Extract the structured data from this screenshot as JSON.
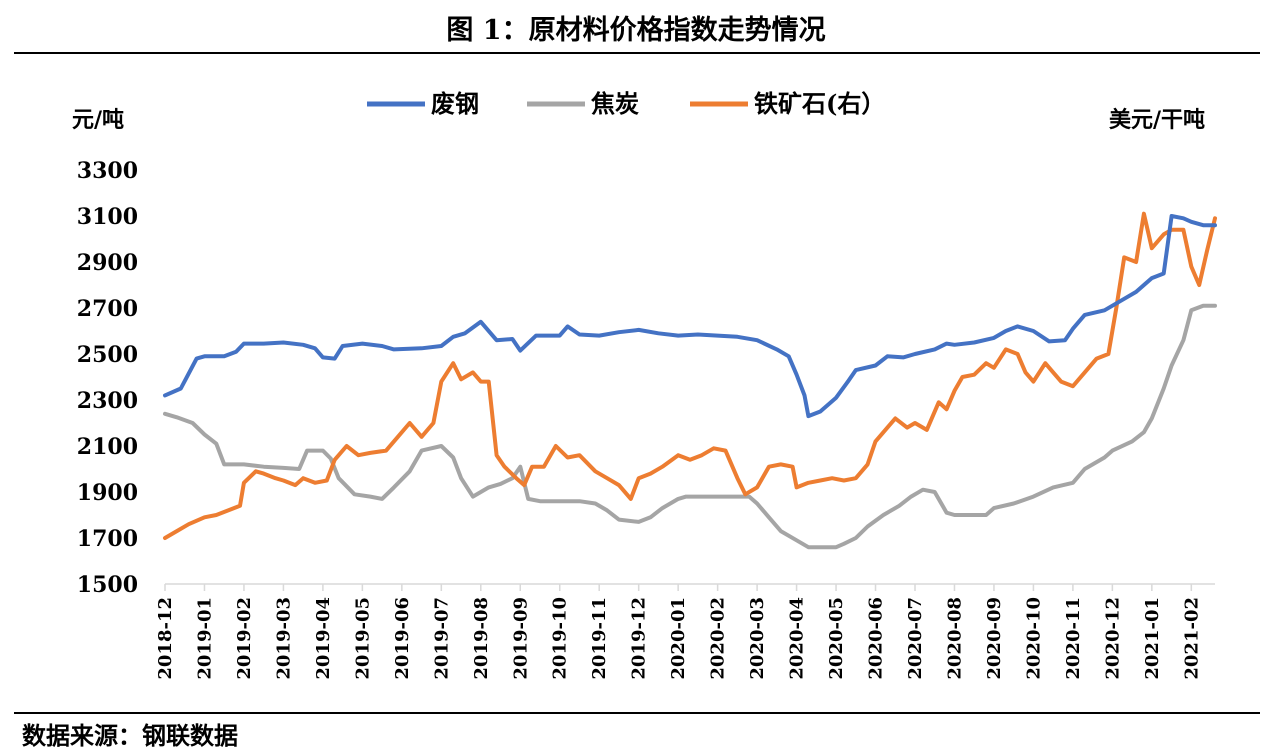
{
  "title": "图 1：原材料价格指数走势情况",
  "source": "数据来源：钢联数据",
  "colors": {
    "scrap": "#4472c4",
    "coke": "#a5a5a5",
    "ore": "#ed7d31"
  },
  "chart_data": {
    "type": "line",
    "y_left_label": "元/吨",
    "y_right_label": "美元/干吨",
    "y_ticks": [
      1500,
      1700,
      1900,
      2100,
      2300,
      2500,
      2700,
      2900,
      3100,
      3300
    ],
    "ylim": [
      1500,
      3300
    ],
    "x_labels": [
      "2018-12",
      "2019-01",
      "2019-02",
      "2019-03",
      "2019-04",
      "2019-05",
      "2019-06",
      "2019-07",
      "2019-08",
      "2019-09",
      "2019-10",
      "2019-11",
      "2019-12",
      "2020-01",
      "2020-02",
      "2020-03",
      "2020-04",
      "2020-05",
      "2020-06",
      "2020-07",
      "2020-08",
      "2020-09",
      "2020-10",
      "2020-11",
      "2020-12",
      "2021-01",
      "2021-02"
    ],
    "xlim": [
      0,
      26.6
    ],
    "legend": "top",
    "grid": false,
    "series": [
      {
        "name": "废钢",
        "color": "#4472c4",
        "points": [
          [
            0,
            2320
          ],
          [
            0.4,
            2350
          ],
          [
            0.8,
            2480
          ],
          [
            1,
            2490
          ],
          [
            1.5,
            2490
          ],
          [
            1.8,
            2510
          ],
          [
            2,
            2545
          ],
          [
            2.5,
            2545
          ],
          [
            3,
            2550
          ],
          [
            3.5,
            2540
          ],
          [
            3.8,
            2525
          ],
          [
            4,
            2485
          ],
          [
            4.3,
            2480
          ],
          [
            4.5,
            2535
          ],
          [
            5,
            2545
          ],
          [
            5.5,
            2535
          ],
          [
            5.8,
            2520
          ],
          [
            6.5,
            2525
          ],
          [
            7,
            2535
          ],
          [
            7.3,
            2575
          ],
          [
            7.6,
            2590
          ],
          [
            8,
            2640
          ],
          [
            8.4,
            2560
          ],
          [
            8.8,
            2565
          ],
          [
            9,
            2515
          ],
          [
            9.4,
            2580
          ],
          [
            9.8,
            2580
          ],
          [
            10,
            2580
          ],
          [
            10.2,
            2620
          ],
          [
            10.5,
            2585
          ],
          [
            11,
            2580
          ],
          [
            11.5,
            2595
          ],
          [
            12,
            2605
          ],
          [
            12.5,
            2590
          ],
          [
            13,
            2580
          ],
          [
            13.5,
            2585
          ],
          [
            14,
            2580
          ],
          [
            14.5,
            2575
          ],
          [
            15,
            2560
          ],
          [
            15.5,
            2520
          ],
          [
            15.8,
            2490
          ],
          [
            16,
            2410
          ],
          [
            16.2,
            2320
          ],
          [
            16.3,
            2230
          ],
          [
            16.6,
            2250
          ],
          [
            17,
            2310
          ],
          [
            17.3,
            2380
          ],
          [
            17.5,
            2430
          ],
          [
            18,
            2450
          ],
          [
            18.3,
            2490
          ],
          [
            18.7,
            2485
          ],
          [
            19,
            2500
          ],
          [
            19.5,
            2520
          ],
          [
            19.8,
            2545
          ],
          [
            20,
            2540
          ],
          [
            20.5,
            2550
          ],
          [
            21,
            2570
          ],
          [
            21.3,
            2600
          ],
          [
            21.6,
            2620
          ],
          [
            22,
            2600
          ],
          [
            22.4,
            2555
          ],
          [
            22.8,
            2560
          ],
          [
            23,
            2610
          ],
          [
            23.3,
            2670
          ],
          [
            23.8,
            2690
          ],
          [
            24,
            2710
          ],
          [
            24.3,
            2740
          ],
          [
            24.6,
            2770
          ],
          [
            25,
            2830
          ],
          [
            25.3,
            2850
          ],
          [
            25.5,
            3100
          ],
          [
            25.8,
            3090
          ],
          [
            26,
            3075
          ],
          [
            26.3,
            3060
          ],
          [
            26.6,
            3060
          ]
        ]
      },
      {
        "name": "焦炭",
        "color": "#a5a5a5",
        "points": [
          [
            0,
            2240
          ],
          [
            0.3,
            2225
          ],
          [
            0.7,
            2200
          ],
          [
            1,
            2150
          ],
          [
            1.3,
            2110
          ],
          [
            1.5,
            2020
          ],
          [
            2,
            2020
          ],
          [
            2.5,
            2010
          ],
          [
            3,
            2005
          ],
          [
            3.4,
            2000
          ],
          [
            3.6,
            2080
          ],
          [
            4,
            2080
          ],
          [
            4.2,
            2045
          ],
          [
            4.4,
            1960
          ],
          [
            4.8,
            1890
          ],
          [
            5.2,
            1880
          ],
          [
            5.5,
            1870
          ],
          [
            5.8,
            1920
          ],
          [
            6.2,
            1990
          ],
          [
            6.5,
            2080
          ],
          [
            7,
            2100
          ],
          [
            7.3,
            2050
          ],
          [
            7.5,
            1960
          ],
          [
            7.8,
            1880
          ],
          [
            8.2,
            1920
          ],
          [
            8.5,
            1935
          ],
          [
            8.8,
            1960
          ],
          [
            9,
            2010
          ],
          [
            9.2,
            1870
          ],
          [
            9.5,
            1860
          ],
          [
            10,
            1860
          ],
          [
            10.5,
            1860
          ],
          [
            10.9,
            1850
          ],
          [
            11.2,
            1820
          ],
          [
            11.5,
            1780
          ],
          [
            12,
            1770
          ],
          [
            12.3,
            1790
          ],
          [
            12.6,
            1830
          ],
          [
            13,
            1870
          ],
          [
            13.2,
            1880
          ],
          [
            13.8,
            1880
          ],
          [
            14.3,
            1880
          ],
          [
            14.8,
            1880
          ],
          [
            15,
            1850
          ],
          [
            15.3,
            1790
          ],
          [
            15.6,
            1730
          ],
          [
            16,
            1690
          ],
          [
            16.3,
            1660
          ],
          [
            16.7,
            1660
          ],
          [
            17,
            1660
          ],
          [
            17.2,
            1675
          ],
          [
            17.5,
            1700
          ],
          [
            17.8,
            1750
          ],
          [
            18.2,
            1800
          ],
          [
            18.6,
            1840
          ],
          [
            18.9,
            1880
          ],
          [
            19.2,
            1910
          ],
          [
            19.5,
            1900
          ],
          [
            19.8,
            1810
          ],
          [
            20,
            1800
          ],
          [
            20.5,
            1800
          ],
          [
            20.8,
            1800
          ],
          [
            21,
            1830
          ],
          [
            21.5,
            1850
          ],
          [
            22,
            1880
          ],
          [
            22.5,
            1920
          ],
          [
            23,
            1940
          ],
          [
            23.3,
            2000
          ],
          [
            23.8,
            2050
          ],
          [
            24,
            2080
          ],
          [
            24.5,
            2120
          ],
          [
            24.8,
            2160
          ],
          [
            25,
            2220
          ],
          [
            25.3,
            2350
          ],
          [
            25.5,
            2450
          ],
          [
            25.8,
            2560
          ],
          [
            26,
            2690
          ],
          [
            26.3,
            2710
          ],
          [
            26.6,
            2710
          ]
        ]
      },
      {
        "name": "铁矿石(右）",
        "color": "#ed7d31",
        "points": [
          [
            0,
            1700
          ],
          [
            0.3,
            1730
          ],
          [
            0.6,
            1760
          ],
          [
            1,
            1790
          ],
          [
            1.3,
            1800
          ],
          [
            1.6,
            1820
          ],
          [
            1.9,
            1840
          ],
          [
            2,
            1940
          ],
          [
            2.3,
            1990
          ],
          [
            2.5,
            1980
          ],
          [
            2.8,
            1960
          ],
          [
            3,
            1950
          ],
          [
            3.3,
            1930
          ],
          [
            3.5,
            1960
          ],
          [
            3.8,
            1940
          ],
          [
            4.1,
            1950
          ],
          [
            4.3,
            2040
          ],
          [
            4.6,
            2100
          ],
          [
            4.9,
            2060
          ],
          [
            5.2,
            2070
          ],
          [
            5.6,
            2080
          ],
          [
            5.9,
            2140
          ],
          [
            6.2,
            2200
          ],
          [
            6.5,
            2140
          ],
          [
            6.8,
            2200
          ],
          [
            7,
            2380
          ],
          [
            7.3,
            2460
          ],
          [
            7.5,
            2390
          ],
          [
            7.8,
            2420
          ],
          [
            8,
            2380
          ],
          [
            8.2,
            2380
          ],
          [
            8.4,
            2060
          ],
          [
            8.6,
            2010
          ],
          [
            8.9,
            1960
          ],
          [
            9.1,
            1930
          ],
          [
            9.3,
            2010
          ],
          [
            9.6,
            2010
          ],
          [
            9.9,
            2100
          ],
          [
            10.2,
            2050
          ],
          [
            10.5,
            2060
          ],
          [
            10.9,
            1990
          ],
          [
            11.2,
            1960
          ],
          [
            11.5,
            1930
          ],
          [
            11.8,
            1870
          ],
          [
            12,
            1960
          ],
          [
            12.3,
            1980
          ],
          [
            12.6,
            2010
          ],
          [
            13,
            2060
          ],
          [
            13.3,
            2040
          ],
          [
            13.6,
            2060
          ],
          [
            13.9,
            2090
          ],
          [
            14.2,
            2080
          ],
          [
            14.5,
            1960
          ],
          [
            14.7,
            1890
          ],
          [
            15,
            1920
          ],
          [
            15.3,
            2010
          ],
          [
            15.6,
            2020
          ],
          [
            15.9,
            2010
          ],
          [
            16,
            1920
          ],
          [
            16.3,
            1940
          ],
          [
            16.6,
            1950
          ],
          [
            16.9,
            1960
          ],
          [
            17.2,
            1950
          ],
          [
            17.5,
            1960
          ],
          [
            17.8,
            2020
          ],
          [
            18,
            2120
          ],
          [
            18.3,
            2180
          ],
          [
            18.5,
            2220
          ],
          [
            18.8,
            2180
          ],
          [
            19,
            2200
          ],
          [
            19.3,
            2170
          ],
          [
            19.6,
            2290
          ],
          [
            19.8,
            2260
          ],
          [
            20,
            2340
          ],
          [
            20.2,
            2400
          ],
          [
            20.5,
            2410
          ],
          [
            20.8,
            2460
          ],
          [
            21,
            2440
          ],
          [
            21.3,
            2520
          ],
          [
            21.6,
            2500
          ],
          [
            21.8,
            2420
          ],
          [
            22,
            2380
          ],
          [
            22.3,
            2460
          ],
          [
            22.5,
            2420
          ],
          [
            22.7,
            2380
          ],
          [
            23,
            2360
          ],
          [
            23.3,
            2420
          ],
          [
            23.6,
            2480
          ],
          [
            23.9,
            2500
          ],
          [
            24.1,
            2700
          ],
          [
            24.3,
            2920
          ],
          [
            24.6,
            2900
          ],
          [
            24.8,
            3110
          ],
          [
            25,
            2960
          ],
          [
            25.3,
            3020
          ],
          [
            25.5,
            3040
          ],
          [
            25.8,
            3040
          ],
          [
            26,
            2880
          ],
          [
            26.2,
            2800
          ],
          [
            26.4,
            2950
          ],
          [
            26.6,
            3090
          ]
        ]
      }
    ]
  }
}
